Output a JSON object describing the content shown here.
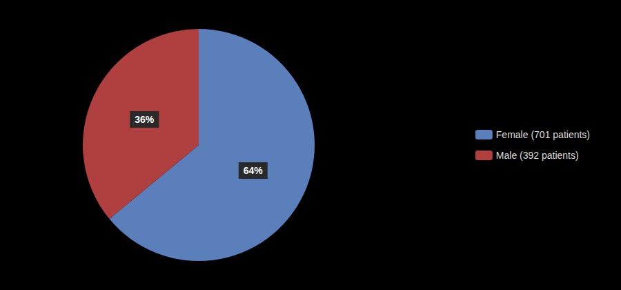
{
  "chart_data": {
    "type": "pie",
    "categories": [
      "Female (701 patients)",
      "Male (392 patients)"
    ],
    "values": [
      64,
      36
    ],
    "value_labels": [
      "64%",
      "36%"
    ],
    "colors": [
      "#5b7fbb",
      "#b04040"
    ],
    "data_labels": true,
    "legend": "right"
  }
}
